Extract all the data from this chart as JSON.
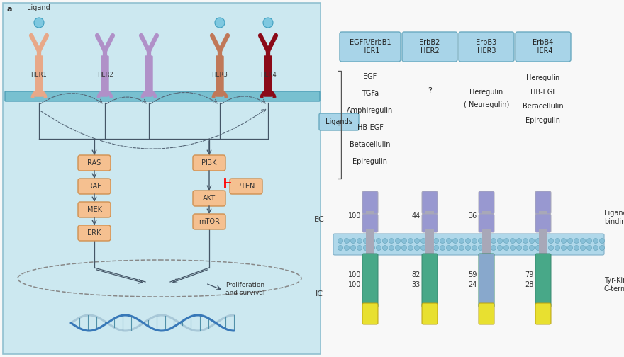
{
  "bg_color": "#f8f8f8",
  "left_panel_bg": "#cce8f0",
  "membrane_color": "#7ec8d8",
  "receptor_colors": {
    "HER1": "#e8a888",
    "HER2": "#b090c8",
    "HER3": "#c07858",
    "HER4": "#8b0a18"
  },
  "ligand_color": "#7ec8e0",
  "signaling_box_fill": "#f5c090",
  "signaling_box_edge": "#d09050",
  "header_box_fill": "#a8d4e8",
  "header_box_edge": "#6aaac0",
  "ligands_box_fill": "#a8d4e8",
  "ligands_box_edge": "#6aaac0",
  "erbb_names": [
    "EGFR/ErbB1\nHER1",
    "ErbB2\nHER2",
    "ErbB3\nHER3",
    "ErbB4\nHER4"
  ],
  "ligands_HER1": [
    "EGF",
    "TGFa",
    "Amphiregulin",
    "HB-EGF",
    "Betacellulin",
    "Epiregulin"
  ],
  "ligands_HER2": [
    "?"
  ],
  "ligands_HER3": [
    "Heregulin",
    "( Neuregulin)"
  ],
  "ligands_HER4": [
    "Heregulin",
    "HB-EGF",
    "Beracellulin",
    "Epiregulin"
  ],
  "ec_values": [
    "100",
    "44",
    "36",
    ""
  ],
  "ic_values": [
    [
      "100",
      "100"
    ],
    [
      "82",
      "33"
    ],
    [
      "59",
      "24"
    ],
    [
      "79",
      "28"
    ]
  ],
  "purple_segment": "#9898d0",
  "gray_segment": "#a8a8b8",
  "teal_segment": "#48a888",
  "blue_segment_HER3": "#88a8cc",
  "yellow_segment": "#e8e030",
  "dna_blue": "#3878b8",
  "dna_light": "#a8c8d8"
}
